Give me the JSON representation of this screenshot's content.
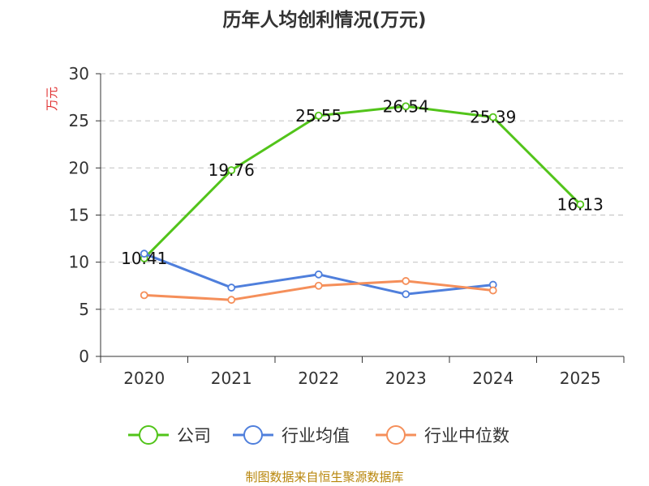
{
  "title": "历年人均创利情况(万元)",
  "footer": "制图数据来自恒生聚源数据库",
  "chart_data": {
    "type": "line",
    "title": "历年人均创利情况(万元)",
    "ylabel": "万元",
    "xlabel": "",
    "categories": [
      "2020",
      "2021",
      "2022",
      "2023",
      "2024",
      "2025"
    ],
    "ylim": [
      0,
      30
    ],
    "yticks": [
      0,
      5,
      10,
      15,
      20,
      25,
      30
    ],
    "grid": true,
    "legend_position": "bottom",
    "series": [
      {
        "name": "公司",
        "color": "#52c41a",
        "values": [
          10.41,
          19.76,
          25.55,
          26.54,
          25.39,
          16.13
        ],
        "labels": [
          "10.41",
          "19.76",
          "25.55",
          "26.54",
          "25.39",
          "16.13"
        ]
      },
      {
        "name": "行业均值",
        "color": "#4f7fdc",
        "values": [
          10.9,
          7.3,
          8.7,
          6.6,
          7.6,
          null
        ]
      },
      {
        "name": "行业中位数",
        "color": "#f58f5a",
        "values": [
          6.5,
          6.0,
          7.5,
          8.0,
          7.0,
          null
        ]
      }
    ]
  }
}
